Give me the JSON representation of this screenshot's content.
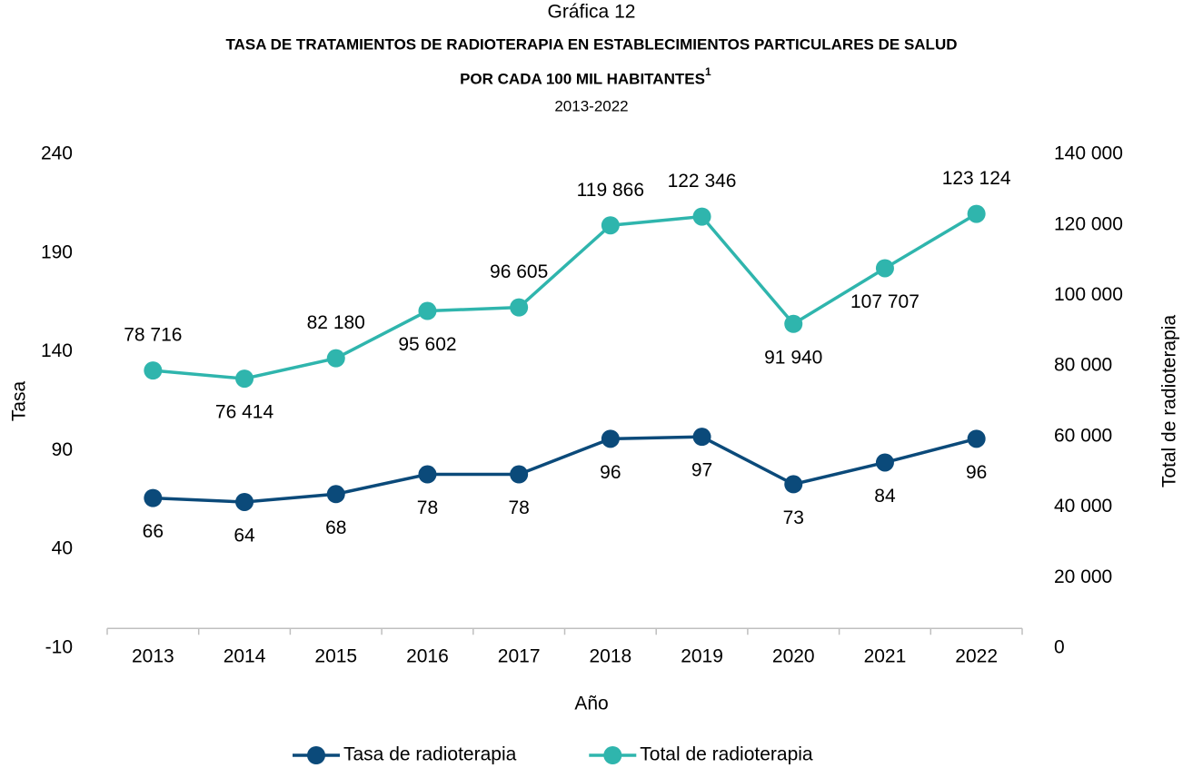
{
  "chart_data": {
    "type": "line",
    "kicker": "Gráfica 12",
    "title": [
      "TASA DE TRATAMIENTOS DE RADIOTERAPIA EN ESTABLECIMIENTOS PARTICULARES DE SALUD",
      "POR CADA 100 MIL HABITANTES"
    ],
    "title_note": "1",
    "subtitle": "2013-2022",
    "xlabel": "Año",
    "ylabel": "Tasa",
    "y2label": "Total de radioterapia",
    "categories": [
      "2013",
      "2014",
      "2015",
      "2016",
      "2017",
      "2018",
      "2019",
      "2020",
      "2021",
      "2022"
    ],
    "ylim": [
      -10,
      240
    ],
    "yticks": [
      -10,
      40,
      90,
      140,
      190,
      240
    ],
    "y2lim": [
      0,
      140000
    ],
    "y2ticks": [
      0,
      {
        "value": 20000,
        "label": "20 000"
      },
      {
        "value": 40000,
        "label": "40 000"
      },
      {
        "value": 60000,
        "label": "60 000"
      },
      {
        "value": 80000,
        "label": "80 000"
      },
      {
        "value": 100000,
        "label": "100 000"
      },
      {
        "value": 120000,
        "label": "120 000"
      },
      {
        "value": 140000,
        "label": "140 000"
      }
    ],
    "legend": "bottom",
    "series": [
      {
        "name": "Tasa de radioterapia",
        "color": "#0b4a7a",
        "values": [
          66,
          64,
          68,
          78,
          78,
          96,
          97,
          73,
          84,
          96
        ]
      },
      {
        "name": "Total de radioterapia",
        "color": "#2fb5ad",
        "axis": "y2",
        "values": [
          78716,
          76414,
          82180,
          95602,
          96605,
          119866,
          122346,
          91940,
          107707,
          123124
        ],
        "value_labels": [
          "78 716",
          "76 414",
          "82 180",
          "95 602",
          "96 605",
          "119 866",
          "122 346",
          "91 940",
          "107 707",
          "123 124"
        ]
      }
    ]
  }
}
